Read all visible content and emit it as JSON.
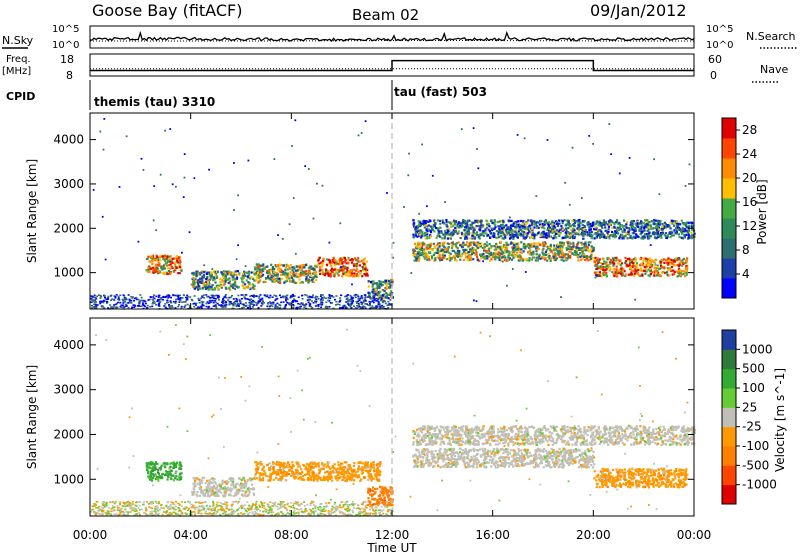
{
  "header": {
    "station": "Goose Bay (fitACF)",
    "beam": "Beam 02",
    "date": "09/Jan/2012"
  },
  "strip_labels": {
    "nsky": "N.Sky",
    "nsearch": "N.Search",
    "freq": "Freq.",
    "freq_unit": "[MHz]",
    "nave": "Nave",
    "cpid": "CPID",
    "noise_top": "10^5",
    "noise_bottom": "10^0",
    "freq_top": "18",
    "freq_bottom": "8",
    "nave_top": "60",
    "nave_bottom": "0"
  },
  "colors": {
    "power_scale": [
      "#0000ff",
      "#1e3fa8",
      "#2e6e6e",
      "#2e8b57",
      "#44aa44",
      "#ffbf00",
      "#ff8c00",
      "#ff4500",
      "#e00000"
    ],
    "velocity_scale": [
      "#1f3fa0",
      "#2e7a3c",
      "#33aa33",
      "#66cc33",
      "#c0c0b8",
      "#ff9900",
      "#ff7f00",
      "#ff4500",
      "#e00000"
    ],
    "track_blue": "#2050d0",
    "track_green": "#3a9a6a",
    "track_orange": "#ff9900",
    "track_red": "#e02020",
    "track_grey": "#b8b8b0"
  },
  "chart_data": [
    {
      "type": "line",
      "title": "N.Sky / N.Search",
      "x": [
        "00:00",
        "04:00",
        "08:00",
        "12:00",
        "16:00",
        "20:00",
        "00:00"
      ],
      "ylim": [
        "10^0",
        "10^5"
      ],
      "series": [
        {
          "name": "N.Sky",
          "values": [
            2.0,
            2.1,
            1.9,
            1.9,
            2.0,
            1.9,
            2.1
          ]
        },
        {
          "name": "N.Search",
          "values": [
            1.6,
            1.6,
            1.6,
            1.7,
            1.7,
            1.6,
            1.6
          ]
        }
      ]
    },
    {
      "type": "line",
      "title": "Freq. [MHz] / Nave",
      "x": [
        "00:00",
        "12:00",
        "12:00",
        "20:00",
        "20:00",
        "00:00"
      ],
      "ylim": [
        8,
        18
      ],
      "series": [
        {
          "name": "Freq.",
          "values": [
            10.5,
            10.5,
            15,
            15,
            10.5,
            10.5
          ]
        },
        {
          "name": "Nave",
          "values": [
            20,
            20,
            20,
            20,
            20,
            20
          ]
        }
      ]
    },
    {
      "type": "table",
      "title": "CPID",
      "segments": [
        {
          "start": "00:00",
          "end": "12:00",
          "label": "themis (tau) 3310"
        },
        {
          "start": "12:00",
          "end": "00:00",
          "label": "tau (fast) 503"
        }
      ]
    },
    {
      "type": "heatmap",
      "title": "Power",
      "xlabel": "Time UT",
      "ylabel": "Slant Range [km]",
      "colorbar_label": "Power [dB]",
      "colorbar_ticks": [
        4,
        8,
        12,
        16,
        20,
        24,
        28
      ],
      "colorbar_range": [
        0,
        30
      ],
      "xticks": [
        "00:00",
        "04:00",
        "08:00",
        "12:00",
        "16:00",
        "20:00",
        "00:00"
      ],
      "yticks": [
        1000,
        2000,
        3000,
        4000
      ],
      "ylim": [
        180,
        4600
      ],
      "xlim_hours": [
        0,
        24
      ],
      "echo_tracks": [
        {
          "start_h": 2.2,
          "end_h": 3.6,
          "range_km": 1200,
          "power_db": 24
        },
        {
          "start_h": 4.0,
          "end_h": 6.5,
          "range_km": 850,
          "power_db": 10
        },
        {
          "start_h": 6.5,
          "end_h": 9.0,
          "range_km": 1000,
          "power_db": 14
        },
        {
          "start_h": 9.0,
          "end_h": 11.0,
          "range_km": 1150,
          "power_db": 26
        },
        {
          "start_h": 11.0,
          "end_h": 12.0,
          "range_km": 650,
          "power_db": 10
        },
        {
          "start_h": 12.8,
          "end_h": 20.0,
          "range_km": 1500,
          "power_db": 14
        },
        {
          "start_h": 12.8,
          "end_h": 24.0,
          "range_km": 2000,
          "power_db": 6
        },
        {
          "start_h": 20.0,
          "end_h": 23.7,
          "range_km": 1150,
          "power_db": 22
        }
      ]
    },
    {
      "type": "heatmap",
      "title": "Velocity",
      "xlabel": "Time UT",
      "ylabel": "Slant Range [km]",
      "colorbar_label": "Velocity [m s^-1]",
      "colorbar_ticks": [
        1000,
        500,
        100,
        25,
        -25,
        -100,
        -500,
        -1000
      ],
      "xticks": [
        "00:00",
        "04:00",
        "08:00",
        "12:00",
        "16:00",
        "20:00",
        "00:00"
      ],
      "yticks": [
        1000,
        2000,
        3000,
        4000
      ],
      "ylim": [
        180,
        4600
      ],
      "xlim_hours": [
        0,
        24
      ],
      "echo_tracks": [
        {
          "start_h": 2.2,
          "end_h": 3.6,
          "range_km": 1200,
          "velocity": 150
        },
        {
          "start_h": 4.0,
          "end_h": 6.5,
          "range_km": 850,
          "velocity": 0
        },
        {
          "start_h": 6.5,
          "end_h": 11.5,
          "range_km": 1200,
          "velocity": -150
        },
        {
          "start_h": 11.0,
          "end_h": 12.0,
          "range_km": 650,
          "velocity": -300
        },
        {
          "start_h": 12.8,
          "end_h": 20.0,
          "range_km": 1500,
          "velocity": 0
        },
        {
          "start_h": 12.8,
          "end_h": 24.0,
          "range_km": 2000,
          "velocity": 0
        },
        {
          "start_h": 20.0,
          "end_h": 23.7,
          "range_km": 1050,
          "velocity": -120
        }
      ]
    }
  ]
}
